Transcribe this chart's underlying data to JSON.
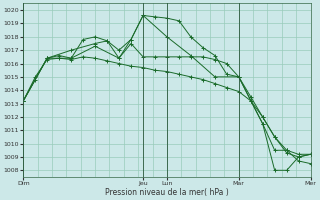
{
  "title": "",
  "xlabel": "Pression niveau de la mer( hPa )",
  "ylabel": "",
  "bg_color": "#cce8e8",
  "grid_color": "#99ccbb",
  "line_color": "#1a6b2a",
  "ylim": [
    1007.5,
    1020.5
  ],
  "yticks": [
    1008,
    1009,
    1010,
    1011,
    1012,
    1013,
    1014,
    1015,
    1016,
    1017,
    1018,
    1019,
    1020
  ],
  "day_labels": [
    "Dim",
    "",
    "Jeu",
    "Lun",
    "",
    "Mar",
    "",
    "Mer"
  ],
  "day_positions": [
    0.0,
    0.25,
    0.417,
    0.5,
    0.625,
    0.75,
    0.875,
    1.0
  ],
  "xlim": [
    0,
    1.0
  ],
  "series": [
    {
      "x": [
        0.0,
        0.042,
        0.083,
        0.125,
        0.167,
        0.208,
        0.25,
        0.292,
        0.333,
        0.375,
        0.417,
        0.458,
        0.5,
        0.542,
        0.583,
        0.625,
        0.667,
        0.708,
        0.75,
        0.792,
        0.833,
        0.875,
        0.917,
        0.958,
        1.0
      ],
      "y": [
        1013.2,
        1014.8,
        1016.4,
        1016.6,
        1016.4,
        1017.8,
        1018.0,
        1017.7,
        1017.0,
        1017.8,
        1019.6,
        1019.5,
        1019.4,
        1019.2,
        1018.0,
        1017.2,
        1016.6,
        1015.2,
        1015.0,
        1013.2,
        1011.5,
        1009.5,
        1009.5,
        1009.2,
        1009.2
      ]
    },
    {
      "x": [
        0.0,
        0.042,
        0.083,
        0.125,
        0.167,
        0.208,
        0.25,
        0.292,
        0.333,
        0.375,
        0.417,
        0.458,
        0.5,
        0.542,
        0.583,
        0.625,
        0.667,
        0.708,
        0.75,
        0.792,
        0.833,
        0.875,
        0.917,
        0.958,
        1.0
      ],
      "y": [
        1013.2,
        1015.0,
        1016.3,
        1016.4,
        1016.3,
        1016.5,
        1016.4,
        1016.2,
        1016.0,
        1015.8,
        1015.7,
        1015.5,
        1015.4,
        1015.2,
        1015.0,
        1014.8,
        1014.5,
        1014.2,
        1013.9,
        1013.2,
        1012.0,
        1010.5,
        1009.5,
        1008.7,
        1008.5
      ]
    },
    {
      "x": [
        0.0,
        0.083,
        0.167,
        0.25,
        0.333,
        0.375,
        0.417,
        0.458,
        0.5,
        0.542,
        0.583,
        0.625,
        0.667,
        0.708,
        0.75,
        0.792,
        0.833,
        0.875,
        0.917,
        0.958,
        1.0
      ],
      "y": [
        1013.2,
        1016.4,
        1016.4,
        1017.3,
        1016.4,
        1017.5,
        1016.5,
        1016.5,
        1016.5,
        1016.5,
        1016.5,
        1016.5,
        1016.3,
        1016.0,
        1015.0,
        1013.5,
        1012.0,
        1010.5,
        1009.3,
        1009.0,
        1009.2
      ]
    },
    {
      "x": [
        0.0,
        0.083,
        0.167,
        0.25,
        0.292,
        0.333,
        0.375,
        0.417,
        0.5,
        0.583,
        0.667,
        0.75,
        0.833,
        0.875,
        0.917,
        0.958,
        1.0
      ],
      "y": [
        1013.2,
        1016.4,
        1017.0,
        1017.5,
        1017.7,
        1016.4,
        1017.8,
        1019.6,
        1018.0,
        1016.6,
        1015.0,
        1015.0,
        1011.5,
        1008.0,
        1008.0,
        1009.0,
        1009.2
      ]
    }
  ],
  "vlines": [
    0.0,
    0.417,
    0.5,
    0.75,
    1.0
  ],
  "tick_label_fontsize": 4.5,
  "xlabel_fontsize": 5.5
}
